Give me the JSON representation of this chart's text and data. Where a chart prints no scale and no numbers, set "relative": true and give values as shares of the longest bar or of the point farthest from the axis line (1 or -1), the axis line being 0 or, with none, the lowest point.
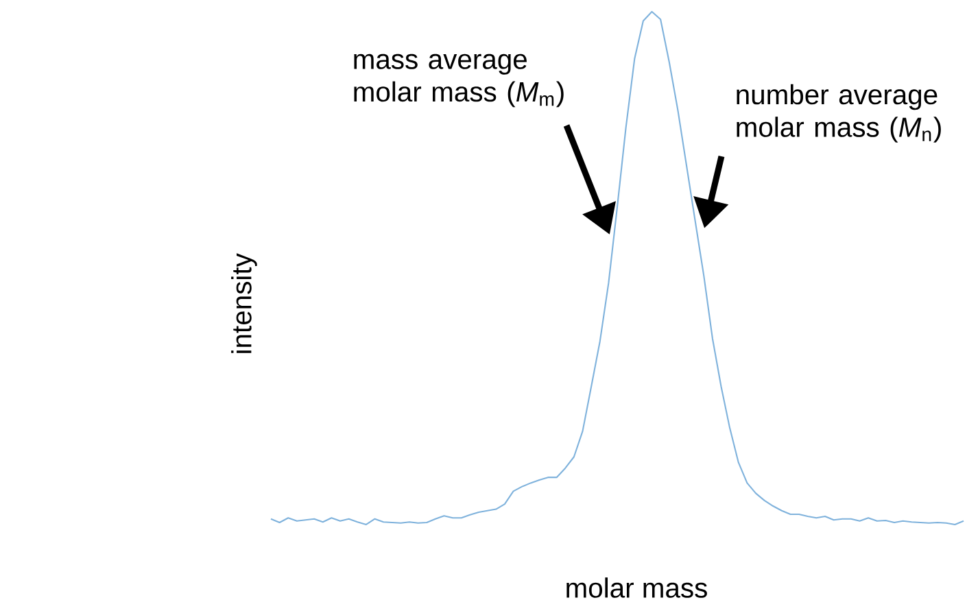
{
  "chart_data": {
    "type": "line",
    "relative": true,
    "color": "#7fb2dc",
    "xlabel": "molar mass",
    "ylabel": "intensity",
    "categories": [
      null,
      null,
      null,
      null,
      null,
      null,
      null,
      null,
      null,
      null,
      null,
      null,
      null,
      null,
      null,
      null,
      null,
      null,
      null,
      null,
      null,
      null,
      null,
      null,
      null,
      null,
      null,
      null,
      null,
      null,
      null,
      null,
      null,
      null,
      null,
      null,
      null,
      null,
      null,
      null,
      null,
      null,
      null,
      null,
      null,
      null,
      null,
      null,
      null,
      null,
      null,
      null,
      null,
      null,
      null,
      null,
      null,
      null,
      null,
      null,
      null,
      null,
      null,
      null,
      null,
      null,
      null,
      null,
      null,
      null,
      null,
      null,
      null,
      null,
      null,
      null,
      null,
      null,
      null,
      null,
      null
    ],
    "values": [
      0.011,
      0.004,
      0.013,
      0.007,
      0.009,
      0.011,
      0.005,
      0.013,
      0.007,
      0.011,
      0.005,
      0,
      0.011,
      0.005,
      0.004,
      0.003,
      0.005,
      0.003,
      0.004,
      0.011,
      0.017,
      0.013,
      0.013,
      0.019,
      0.024,
      0.027,
      0.03,
      0.04,
      0.065,
      0.074,
      0.081,
      0.087,
      0.092,
      0.092,
      0.11,
      0.132,
      0.182,
      0.269,
      0.357,
      0.471,
      0.619,
      0.774,
      0.908,
      0.982,
      1,
      0.985,
      0.902,
      0.808,
      0.7,
      0.592,
      0.485,
      0.363,
      0.269,
      0.188,
      0.121,
      0.081,
      0.061,
      0.047,
      0.036,
      0.027,
      0.02,
      0.02,
      0.016,
      0.013,
      0.016,
      0.009,
      0.011,
      0.011,
      0.007,
      0.013,
      0.007,
      0.008,
      0.004,
      0.007,
      0.005,
      0.004,
      0.003,
      0.004,
      0.003,
      0,
      0.007
    ],
    "annotations": [
      "mass average molar mass (*M*$_{m}$)",
      "number average molar mass (*M*$_{n}$)"
    ]
  }
}
